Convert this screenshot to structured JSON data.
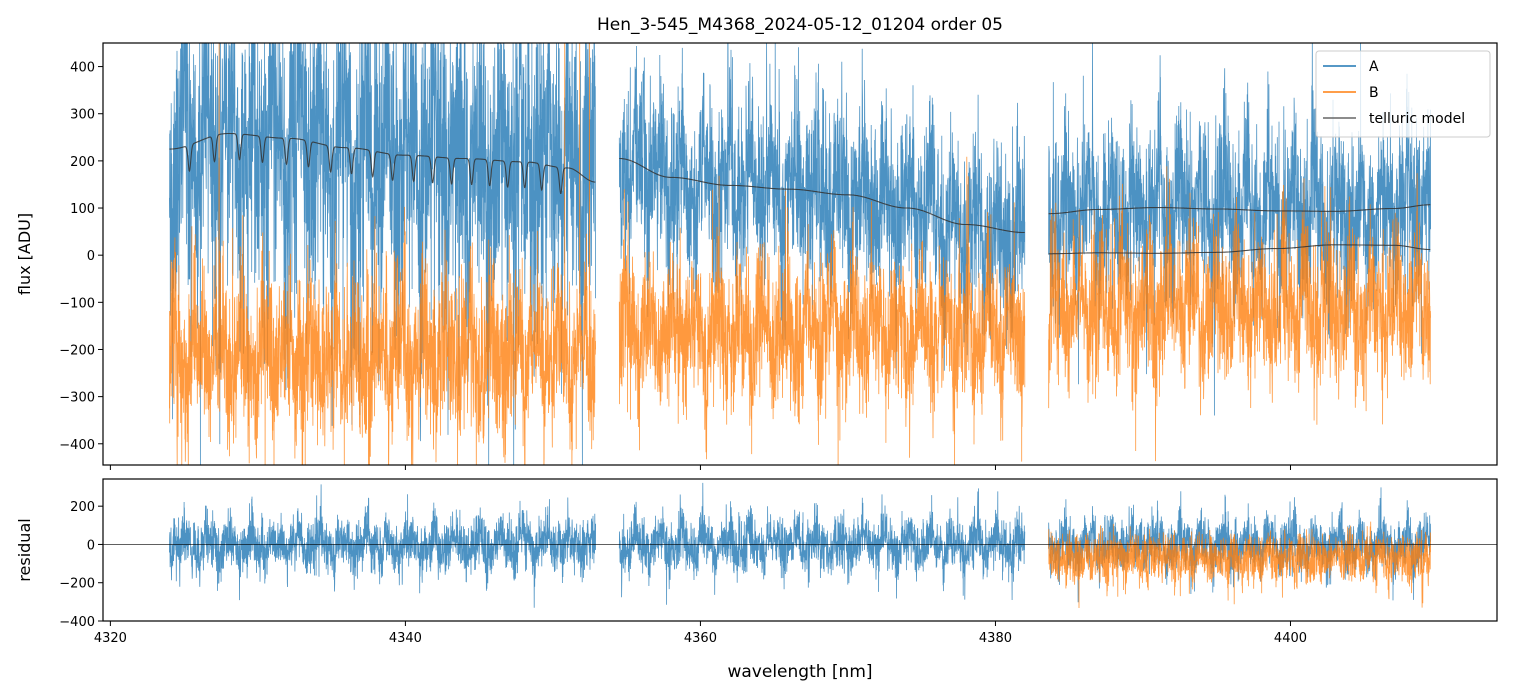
{
  "chart_data": [
    {
      "type": "line",
      "title": "Hen_3-545_M4368_2024-05-12_01204  order 05",
      "xlabel": "",
      "ylabel": "flux [ADU]",
      "xlim": [
        4319.5,
        4414.0
      ],
      "ylim": [
        -445,
        450
      ],
      "yticks": [
        400,
        300,
        200,
        100,
        0,
        -100,
        -200,
        -300,
        -400
      ],
      "ytick_labels": [
        "400",
        "300",
        "200",
        "100",
        "0",
        "−100",
        "−200",
        "−300",
        "−400"
      ],
      "xticks": [
        4320,
        4340,
        4360,
        4380,
        4400
      ],
      "legend": {
        "placement": "top-right",
        "entries": [
          "A",
          "B",
          "telluric model"
        ]
      },
      "colors": {
        "A": "#1f77b4",
        "B": "#ff7f0e",
        "telluric model": "#333333"
      },
      "segments": [
        [
          4324.0,
          4352.9
        ],
        [
          4354.5,
          4382.0
        ],
        [
          4383.6,
          4409.5
        ]
      ],
      "series": [
        {
          "name": "A",
          "kind": "spectrum",
          "offset_from_model": 0,
          "scatter": 170
        },
        {
          "name": "B",
          "kind": "spectrum",
          "levels": [
            -210,
            -160,
            -110
          ],
          "scatter": 150
        },
        {
          "name": "telluric model",
          "kind": "model",
          "segment_points": [
            {
              "x": [
                4324.0,
                4328.0,
                4332.0,
                4336.0,
                4340.0,
                4344.0,
                4348.0,
                4351.0,
                4352.9
              ],
              "y": [
                225,
                258,
                248,
                228,
                212,
                205,
                198,
                185,
                155
              ]
            },
            {
              "x": [
                4354.5,
                4358.0,
                4362.0,
                4366.0,
                4370.0,
                4374.0,
                4378.0,
                4382.0
              ],
              "y": [
                205,
                165,
                148,
                140,
                128,
                100,
                65,
                48
              ]
            },
            {
              "x": [
                4383.6,
                4387.0,
                4391.0,
                4395.0,
                4399.0,
                4403.0,
                4407.0,
                4409.5
              ],
              "y": [
                88,
                97,
                101,
                98,
                94,
                93,
                99,
                107
              ]
            },
            {
              "x": [
                4383.6,
                4387.0,
                4391.0,
                4395.0,
                4399.0,
                4403.0,
                4407.0,
                4409.5
              ],
              "y": [
                3,
                5,
                4,
                6,
                14,
                22,
                21,
                12
              ]
            }
          ],
          "dips": [
            4325.36,
            4327.06,
            4328.75,
            4330.31,
            4331.94,
            4333.43,
            4334.93,
            4336.35,
            4337.78,
            4339.13,
            4340.56,
            4341.85,
            4343.13,
            4344.49,
            4345.71,
            4346.93,
            4348.09,
            4349.24,
            4350.53
          ],
          "dip_depth": 55
        }
      ]
    },
    {
      "type": "line",
      "xlabel": "wavelength [nm]",
      "ylabel": "residual",
      "xlim": [
        4319.5,
        4414.0
      ],
      "ylim": [
        -400,
        342
      ],
      "yticks": [
        200,
        0,
        -200,
        -400
      ],
      "ytick_labels": [
        "200",
        "0",
        "−200",
        "−400"
      ],
      "xticks": [
        4320,
        4340,
        4360,
        4380,
        4400
      ],
      "xtick_labels": [
        "4320",
        "4340",
        "4360",
        "4380",
        "4400"
      ],
      "series": [
        {
          "name": "A",
          "segments": [
            [
              4324.0,
              4352.9
            ],
            [
              4354.5,
              4382.0
            ],
            [
              4383.6,
              4409.5
            ]
          ],
          "scatter": 110
        },
        {
          "name": "B",
          "segments": [
            [
              4383.6,
              4409.5
            ]
          ],
          "scatter": 110
        }
      ]
    }
  ]
}
